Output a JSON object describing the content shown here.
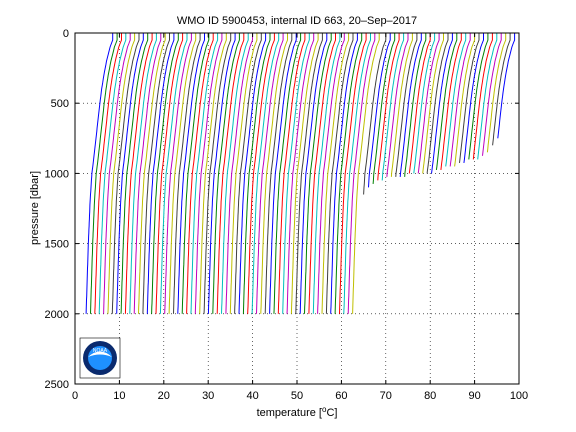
{
  "chart_data": {
    "type": "line",
    "title": "WMO ID 5900453, internal ID 663, 20–Sep–2017",
    "xlabel_prefix": "temperature [",
    "xlabel_unit_sup": "o",
    "xlabel_suffix": "C]",
    "ylabel": "pressure [dbar]",
    "xlim": [
      0,
      100
    ],
    "ylim": [
      0,
      2500
    ],
    "y_reversed": true,
    "grid": "dotted",
    "xticks": [
      0,
      10,
      20,
      30,
      40,
      50,
      60,
      70,
      80,
      90,
      100
    ],
    "yticks": [
      0,
      500,
      1000,
      1500,
      2000,
      2500
    ],
    "xtick_labels": [
      "0",
      "10",
      "20",
      "30",
      "40",
      "50",
      "60",
      "70",
      "80",
      "90",
      "100"
    ],
    "ytick_labels": [
      "0",
      "500",
      "1000",
      "1500",
      "2000",
      "2500"
    ],
    "profile_count": 92,
    "profile_offset_per_profile": 1,
    "profile_start_surface_temp": 8.5,
    "profile_colors": [
      "#0000ff",
      "#008000",
      "#ff0000",
      "#00bfbf",
      "#bf00bf",
      "#bfbf00",
      "#404040"
    ],
    "shape_pressures": [
      0,
      50,
      100,
      200,
      300,
      400,
      500,
      700,
      900,
      1000,
      1200,
      1500,
      1800,
      2000
    ],
    "shape_temp_offsets": [
      0.0,
      0.0,
      -0.6,
      -1.4,
      -2.0,
      -2.5,
      -2.9,
      -3.6,
      -4.3,
      -4.7,
      -5.1,
      -5.5,
      -5.8,
      -6.0
    ],
    "short_profiles": [
      {
        "surface_temp": 70.0,
        "max_pressure": 1160
      },
      {
        "surface_temp": 71.0,
        "max_pressure": 1100
      },
      {
        "surface_temp": 72.0,
        "max_pressure": 1080
      },
      {
        "surface_temp": 73.0,
        "max_pressure": 1060
      },
      {
        "surface_temp": 74.0,
        "max_pressure": 1050
      },
      {
        "surface_temp": 75.0,
        "max_pressure": 1045
      },
      {
        "surface_temp": 76.0,
        "max_pressure": 1040
      },
      {
        "surface_temp": 77.0,
        "max_pressure": 1035
      },
      {
        "surface_temp": 78.0,
        "max_pressure": 1030
      },
      {
        "surface_temp": 79.0,
        "max_pressure": 1025
      },
      {
        "surface_temp": 80.0,
        "max_pressure": 1020
      },
      {
        "surface_temp": 81.0,
        "max_pressure": 1020
      },
      {
        "surface_temp": 82.0,
        "max_pressure": 1015
      },
      {
        "surface_temp": 83.0,
        "max_pressure": 1010
      },
      {
        "surface_temp": 84.0,
        "max_pressure": 1000
      },
      {
        "surface_temp": 85.0,
        "max_pressure": 1000
      },
      {
        "surface_temp": 86.0,
        "max_pressure": 990
      },
      {
        "surface_temp": 87.0,
        "max_pressure": 980
      },
      {
        "surface_temp": 88.0,
        "max_pressure": 970
      },
      {
        "surface_temp": 89.0,
        "max_pressure": 960
      },
      {
        "surface_temp": 90.0,
        "max_pressure": 950
      },
      {
        "surface_temp": 91.0,
        "max_pressure": 940
      },
      {
        "surface_temp": 92.0,
        "max_pressure": 930
      },
      {
        "surface_temp": 93.0,
        "max_pressure": 920
      },
      {
        "surface_temp": 94.0,
        "max_pressure": 910
      },
      {
        "surface_temp": 95.0,
        "max_pressure": 900
      },
      {
        "surface_temp": 96.0,
        "max_pressure": 880
      },
      {
        "surface_temp": 97.0,
        "max_pressure": 850
      },
      {
        "surface_temp": 98.0,
        "max_pressure": 800
      },
      {
        "surface_temp": 99.0,
        "max_pressure": 760
      }
    ],
    "logo": {
      "text": "NOAA",
      "outer_color": "#0a2a6e",
      "inner_color": "#1e90ff",
      "bird_color": "#ffffff"
    }
  }
}
